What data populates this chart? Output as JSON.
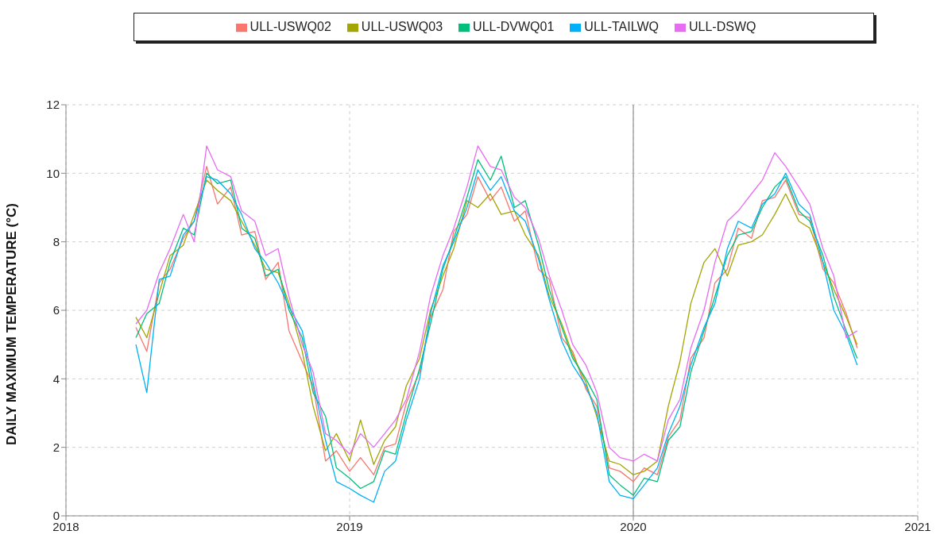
{
  "chart_data": {
    "type": "line",
    "ylabel": "DAILY MAXIMUM TEMPERATURE (°C)",
    "x": [
      "2018-04-01",
      "2018-04-15",
      "2018-05-01",
      "2018-05-15",
      "2018-06-01",
      "2018-06-15",
      "2018-07-01",
      "2018-07-15",
      "2018-08-01",
      "2018-08-15",
      "2018-09-01",
      "2018-09-15",
      "2018-10-01",
      "2018-10-15",
      "2018-11-01",
      "2018-11-15",
      "2018-12-01",
      "2018-12-15",
      "2019-01-01",
      "2019-01-15",
      "2019-02-01",
      "2019-02-15",
      "2019-03-01",
      "2019-03-15",
      "2019-04-01",
      "2019-04-15",
      "2019-05-01",
      "2019-05-15",
      "2019-06-01",
      "2019-06-15",
      "2019-07-01",
      "2019-07-15",
      "2019-08-01",
      "2019-08-15",
      "2019-09-01",
      "2019-09-15",
      "2019-10-01",
      "2019-10-15",
      "2019-11-01",
      "2019-11-15",
      "2019-12-01",
      "2019-12-15",
      "2020-01-01",
      "2020-01-15",
      "2020-02-01",
      "2020-02-15",
      "2020-03-01",
      "2020-03-15",
      "2020-04-01",
      "2020-04-15",
      "2020-05-01",
      "2020-05-15",
      "2020-06-01",
      "2020-06-15",
      "2020-07-01",
      "2020-07-15",
      "2020-08-01",
      "2020-08-15",
      "2020-09-01",
      "2020-09-15",
      "2020-10-01",
      "2020-10-15"
    ],
    "series": [
      {
        "name": "ULL-USWQ02",
        "color": "#f8766d",
        "values": [
          5.5,
          4.8,
          6.8,
          7.2,
          8.1,
          8.6,
          10.2,
          9.1,
          9.6,
          8.2,
          8.3,
          6.9,
          7.4,
          5.4,
          4.5,
          3.8,
          1.6,
          1.9,
          1.3,
          1.7,
          1.2,
          2.0,
          2.1,
          3.3,
          4.2,
          5.8,
          6.6,
          8.3,
          8.8,
          9.9,
          9.2,
          9.6,
          8.6,
          8.9,
          7.2,
          6.9,
          5.2,
          4.8,
          3.7,
          3.2,
          1.4,
          1.3,
          1.0,
          1.4,
          1.2,
          2.3,
          2.8,
          4.6,
          5.2,
          6.8,
          7.2,
          8.4,
          8.1,
          9.2,
          9.3,
          9.8,
          8.8,
          8.7,
          7.2,
          6.8,
          5.9,
          4.9
        ]
      },
      {
        "name": "ULL-USWQ03",
        "color": "#a3a500",
        "values": [
          5.8,
          5.2,
          6.5,
          7.6,
          7.9,
          8.8,
          9.8,
          9.5,
          9.2,
          8.6,
          7.9,
          7.2,
          7.1,
          6.2,
          4.8,
          3.2,
          1.9,
          2.4,
          1.6,
          2.8,
          1.5,
          2.2,
          2.6,
          3.8,
          4.6,
          6.0,
          7.0,
          7.8,
          9.2,
          9.0,
          9.4,
          8.8,
          8.9,
          8.2,
          7.6,
          6.4,
          5.6,
          4.7,
          3.9,
          2.9,
          1.6,
          1.5,
          1.2,
          1.3,
          1.6,
          3.2,
          4.5,
          6.2,
          7.4,
          7.8,
          7.0,
          7.9,
          8.0,
          8.2,
          8.8,
          9.4,
          8.6,
          8.4,
          7.4,
          6.6,
          5.8,
          5.0
        ]
      },
      {
        "name": "ULL-DVWQ01",
        "color": "#00bf7d",
        "values": [
          5.2,
          5.9,
          6.2,
          7.4,
          8.4,
          8.2,
          10.0,
          9.7,
          9.8,
          8.4,
          8.1,
          7.0,
          7.2,
          6.0,
          5.2,
          3.6,
          2.9,
          1.4,
          1.1,
          0.8,
          1.0,
          1.9,
          1.8,
          3.0,
          4.3,
          5.6,
          7.2,
          8.1,
          9.3,
          10.4,
          9.8,
          10.5,
          9.0,
          9.2,
          7.9,
          6.6,
          5.5,
          4.6,
          4.0,
          3.4,
          1.2,
          0.9,
          0.6,
          1.1,
          1.0,
          2.2,
          2.6,
          4.2,
          5.4,
          6.4,
          7.6,
          8.2,
          8.3,
          9.0,
          9.6,
          9.9,
          8.9,
          8.6,
          7.6,
          6.4,
          5.4,
          4.6
        ]
      },
      {
        "name": "ULL-TAILWQ",
        "color": "#00b0f6",
        "values": [
          5.0,
          3.6,
          6.9,
          7.0,
          8.2,
          8.6,
          9.9,
          9.8,
          9.4,
          8.8,
          7.8,
          7.4,
          6.8,
          6.1,
          5.4,
          3.9,
          2.2,
          1.0,
          0.8,
          0.6,
          0.4,
          1.3,
          1.6,
          2.8,
          4.0,
          5.9,
          7.3,
          8.0,
          9.0,
          10.1,
          9.5,
          9.9,
          8.9,
          8.6,
          7.5,
          6.3,
          5.1,
          4.4,
          3.8,
          3.0,
          1.0,
          0.6,
          0.5,
          0.9,
          1.4,
          2.4,
          3.2,
          4.4,
          5.5,
          6.2,
          7.8,
          8.6,
          8.4,
          9.1,
          9.4,
          10.0,
          9.1,
          8.8,
          7.4,
          6.0,
          5.3,
          4.4
        ]
      },
      {
        "name": "ULL-DSWQ",
        "color": "#e76bf3",
        "values": [
          5.6,
          6.0,
          7.1,
          7.8,
          8.8,
          8.0,
          10.8,
          10.1,
          9.9,
          8.9,
          8.6,
          7.6,
          7.8,
          6.4,
          5.0,
          4.2,
          2.4,
          2.2,
          1.8,
          2.4,
          2.0,
          2.4,
          2.8,
          3.4,
          4.8,
          6.4,
          7.6,
          8.4,
          9.6,
          10.8,
          10.2,
          10.1,
          9.3,
          9.0,
          8.1,
          7.0,
          6.0,
          5.0,
          4.4,
          3.6,
          2.0,
          1.7,
          1.6,
          1.8,
          1.6,
          2.8,
          3.4,
          4.9,
          6.0,
          7.4,
          8.6,
          8.9,
          9.4,
          9.8,
          10.6,
          10.2,
          9.6,
          9.1,
          7.8,
          7.0,
          5.2,
          5.4
        ]
      }
    ],
    "xlim": [
      "2018",
      "2021"
    ],
    "xticks": [
      "2018",
      "2019",
      "2020",
      "2021"
    ],
    "ylim": [
      0,
      12
    ],
    "yticks": [
      0,
      2,
      4,
      6,
      8,
      10,
      12
    ],
    "grid": true,
    "legend": "top",
    "ref_lines": [
      {
        "axis": "x",
        "value": "2020",
        "color": "#9a9a9a",
        "line_style": "solid"
      }
    ]
  }
}
